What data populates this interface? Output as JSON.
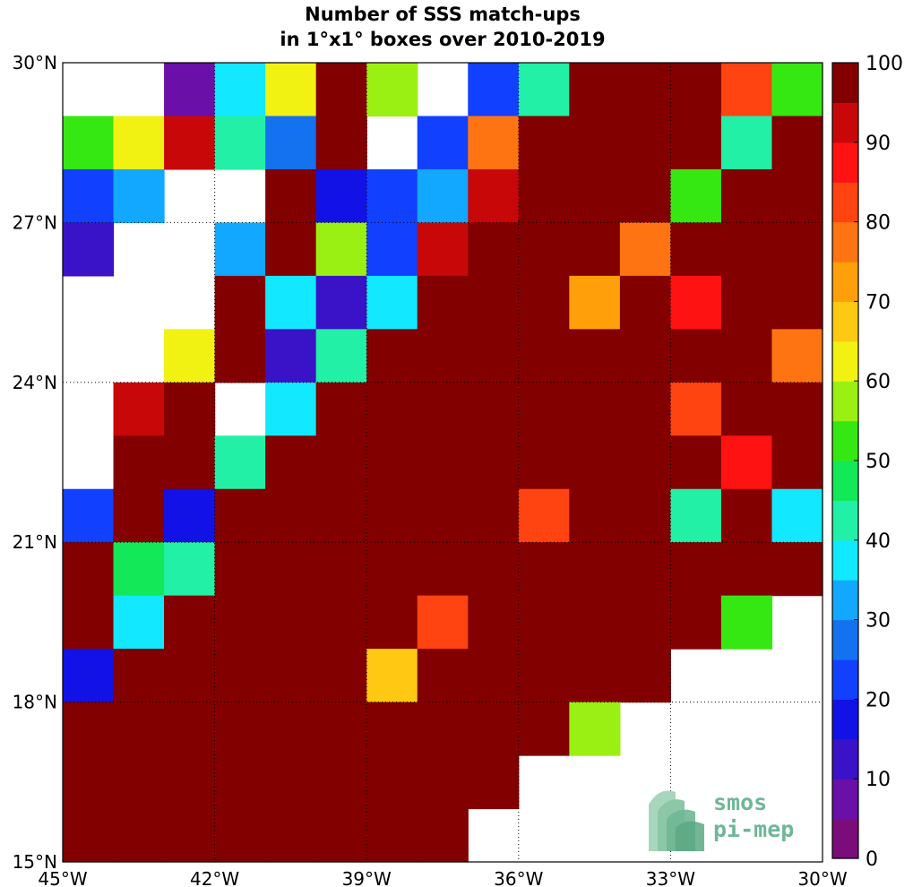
{
  "chart_data": {
    "type": "heatmap",
    "title": [
      "Number of SSS match-ups",
      "in 1°x1° boxes over 2010-2019"
    ],
    "x_tick_labels": [
      "45°W",
      "42°W",
      "39°W",
      "36°W",
      "33°W",
      "30°W"
    ],
    "y_tick_labels": [
      "30°N",
      "27°N",
      "24°N",
      "21°N",
      "18°N",
      "15°N"
    ],
    "lon_range": [
      -45,
      -30
    ],
    "lat_range": [
      15,
      30
    ],
    "cell_size_deg": 1,
    "grid": true,
    "colorbar": {
      "min": 0,
      "max": 100,
      "step": 5,
      "tick_labels": [
        "0",
        "10",
        "20",
        "30",
        "40",
        "50",
        "60",
        "70",
        "80",
        "90",
        "100"
      ],
      "colors": [
        "#7b0d7b",
        "#6a0fa8",
        "#3a12c8",
        "#1212e6",
        "#1240ff",
        "#1472f0",
        "#12a8ff",
        "#12e8ff",
        "#22f0a6",
        "#12e858",
        "#36e812",
        "#9af012",
        "#f2f212",
        "#ffc812",
        "#ffa00a",
        "#ff7412",
        "#ff4412",
        "#ff1212",
        "#c80808",
        "#820000"
      ]
    },
    "cell_values_rows_north_to_south": [
      [
        null,
        null,
        7,
        38,
        62,
        100,
        56,
        null,
        22,
        43,
        100,
        100,
        100,
        83,
        50
      ],
      [
        52,
        62,
        92,
        43,
        28,
        100,
        null,
        22,
        77,
        100,
        100,
        100,
        100,
        43,
        100
      ],
      [
        22,
        33,
        null,
        null,
        100,
        18,
        22,
        33,
        92,
        100,
        100,
        100,
        53,
        100,
        100
      ],
      [
        12,
        null,
        null,
        33,
        100,
        57,
        22,
        92,
        100,
        100,
        100,
        77,
        100,
        100,
        100
      ],
      [
        null,
        null,
        null,
        100,
        38,
        12,
        38,
        100,
        100,
        100,
        72,
        100,
        87,
        100,
        100
      ],
      [
        null,
        null,
        62,
        100,
        12,
        43,
        100,
        100,
        100,
        100,
        100,
        100,
        100,
        100,
        77
      ],
      [
        null,
        92,
        100,
        null,
        38,
        100,
        100,
        100,
        100,
        100,
        100,
        100,
        82,
        100,
        100
      ],
      [
        null,
        100,
        100,
        43,
        100,
        100,
        100,
        100,
        100,
        100,
        100,
        100,
        100,
        87,
        100
      ],
      [
        22,
        100,
        18,
        100,
        100,
        100,
        100,
        100,
        100,
        82,
        100,
        100,
        43,
        100,
        38
      ],
      [
        100,
        48,
        43,
        100,
        100,
        100,
        100,
        100,
        100,
        100,
        100,
        100,
        100,
        100,
        100
      ],
      [
        100,
        38,
        100,
        100,
        100,
        100,
        100,
        82,
        100,
        100,
        100,
        100,
        100,
        52,
        null
      ],
      [
        18,
        100,
        100,
        100,
        100,
        100,
        67,
        100,
        100,
        100,
        100,
        100,
        null,
        null,
        null
      ],
      [
        100,
        100,
        100,
        100,
        100,
        100,
        100,
        100,
        100,
        100,
        58,
        null,
        null,
        null,
        null
      ],
      [
        100,
        100,
        100,
        100,
        100,
        100,
        100,
        100,
        100,
        null,
        null,
        null,
        null,
        null,
        null
      ],
      [
        100,
        100,
        100,
        100,
        100,
        100,
        100,
        100,
        null,
        null,
        null,
        null,
        null,
        null,
        null
      ]
    ]
  },
  "logo": {
    "line1": "smos",
    "line2": "pi-mep"
  }
}
